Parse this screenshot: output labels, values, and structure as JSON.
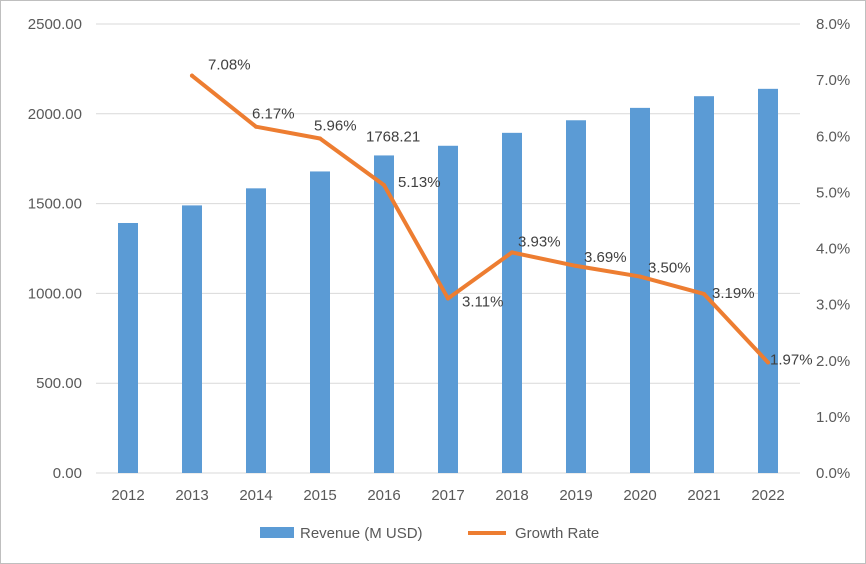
{
  "chart_data": {
    "type": "bar+line",
    "categories": [
      "2012",
      "2013",
      "2014",
      "2015",
      "2016",
      "2017",
      "2018",
      "2019",
      "2020",
      "2021",
      "2022"
    ],
    "series": [
      {
        "name": "Revenue (M USD)",
        "type": "bar",
        "axis": "left",
        "color": "#5b9bd5",
        "values": [
          1392,
          1490,
          1585,
          1679,
          1768.21,
          1822,
          1894,
          1964,
          2033,
          2098,
          2139
        ],
        "data_labels": {
          "2016": "1768.21"
        }
      },
      {
        "name": "Growth Rate",
        "type": "line",
        "axis": "right",
        "color": "#ed7d31",
        "values": [
          null,
          7.08,
          6.17,
          5.96,
          5.13,
          3.11,
          3.93,
          3.69,
          3.5,
          3.19,
          1.97
        ],
        "data_labels": [
          "",
          "7.08%",
          "6.17%",
          "5.96%",
          "5.13%",
          "3.11%",
          "3.93%",
          "3.69%",
          "3.50%",
          "3.19%",
          "1.97%"
        ]
      }
    ],
    "y_left": {
      "range": [
        0,
        2500
      ],
      "ticks": [
        0,
        500,
        1000,
        1500,
        2000,
        2500
      ],
      "tick_labels": [
        "0.00",
        "500.00",
        "1000.00",
        "1500.00",
        "2000.00",
        "2500.00"
      ]
    },
    "y_right": {
      "range": [
        0,
        8
      ],
      "ticks": [
        0,
        1,
        2,
        3,
        4,
        5,
        6,
        7,
        8
      ],
      "tick_labels": [
        "0.0%",
        "1.0%",
        "2.0%",
        "3.0%",
        "4.0%",
        "5.0%",
        "6.0%",
        "7.0%",
        "8.0%"
      ]
    },
    "grid": true,
    "legend": {
      "position": "bottom",
      "items": [
        "Revenue (M USD)",
        "Growth Rate"
      ]
    },
    "title": "",
    "xlabel": "",
    "ylabel": ""
  }
}
